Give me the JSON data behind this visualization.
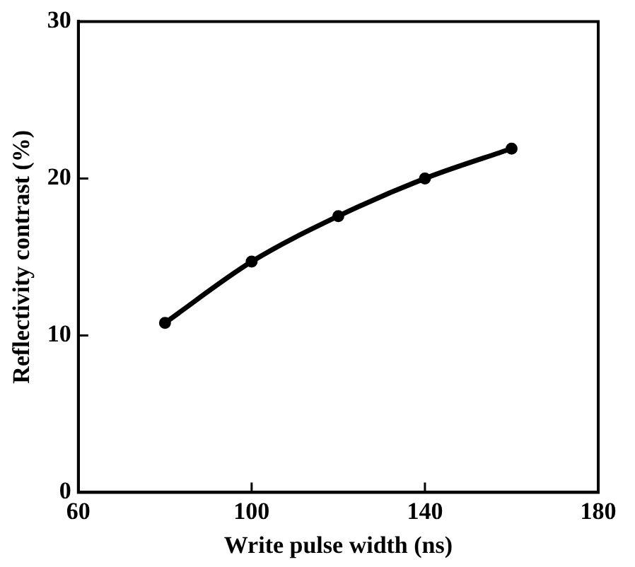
{
  "chart_data": {
    "type": "line",
    "xlabel": "Write pulse width (ns)",
    "ylabel": "Reflectivity contrast (%)",
    "x": [
      80,
      100,
      120,
      140,
      160
    ],
    "series": [
      {
        "color": "#000000",
        "values": [
          10.8,
          14.7,
          17.6,
          20.0,
          21.9
        ]
      }
    ],
    "xlim": [
      60,
      180
    ],
    "xticks": [
      60,
      100,
      140,
      180
    ],
    "ylim": [
      0,
      30
    ],
    "yticks": [
      0,
      10,
      20,
      30
    ],
    "grid": false,
    "legend": false,
    "marker": "circle",
    "line_style": "solid"
  }
}
